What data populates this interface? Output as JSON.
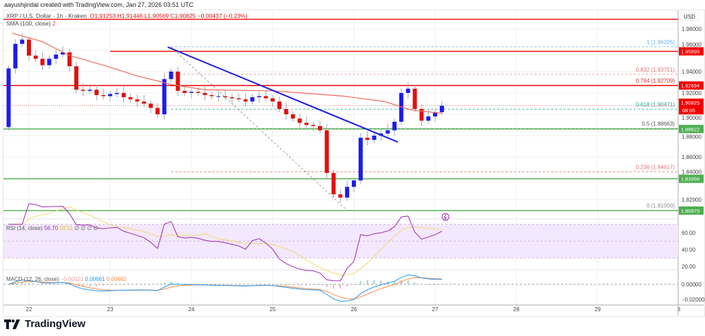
{
  "credit": "aayushjindal created with TradingView.com, Jan 27, 2026 03:51 UTC",
  "legend": {
    "symbol": "XRP / U.S. Dollar · 1h · Kraken",
    "open": "O1.91253",
    "high": "H1.91446",
    "low": "L1.90569",
    "close": "C1.90825",
    "change": "−0.00437 (−0.23%)"
  },
  "sma_legend": {
    "label": "SMA (100, close)",
    "value": "2"
  },
  "currency": "USD",
  "brand": "TradingView",
  "colors": {
    "up": "#1c1cf0",
    "down": "#e01010",
    "sma": "#f06a5a",
    "trendline": "#1a1ae6",
    "resistance": "#f20000",
    "support": "#4caf50",
    "rsi": "#9c27b0",
    "rsi_ma": "#f5d76e",
    "macd": "#2196f3",
    "signal": "#ff8a3d"
  },
  "chart_data": {
    "type": "candlestick",
    "title": "XRP / U.S. Dollar · 1h · Kraken",
    "start": "2026-01-21T18:00",
    "interval_hours": 2,
    "closes": [
      1.943,
      1.966,
      1.97,
      1.955,
      1.952,
      1.946,
      1.952,
      1.956,
      1.958,
      1.945,
      1.923,
      1.922,
      1.923,
      1.918,
      1.917,
      1.919,
      1.92,
      1.916,
      1.914,
      1.912,
      1.91,
      1.906,
      1.9,
      1.933,
      1.94,
      1.922,
      1.92,
      1.921,
      1.92,
      1.918,
      1.917,
      1.917,
      1.916,
      1.915,
      1.914,
      1.912,
      1.916,
      1.917,
      1.915,
      1.912,
      1.905,
      1.9,
      1.896,
      1.892,
      1.89,
      1.889,
      1.885,
      1.845,
      1.825,
      1.822,
      1.832,
      1.838,
      1.878,
      1.876,
      1.88,
      1.882,
      1.885,
      1.893,
      1.92,
      1.924,
      1.905,
      1.894,
      1.898,
      1.902,
      1.908
    ],
    "first_open": 1.888,
    "sma_100": [
      [
        "2026-01-21T19:00",
        1.976
      ],
      [
        "2026-01-22T04:00",
        1.968
      ],
      [
        "2026-01-22T12:00",
        1.955
      ],
      [
        "2026-01-22T22:00",
        1.946
      ],
      [
        "2026-01-23T08:00",
        1.936
      ],
      [
        "2026-01-23T18:00",
        1.928
      ],
      [
        "2026-01-24T04:00",
        1.923
      ],
      [
        "2026-01-25T00:00",
        1.922
      ],
      [
        "2026-01-25T21:00",
        1.917
      ],
      [
        "2026-01-26T09:00",
        1.912
      ],
      [
        "2026-01-26T17:00",
        1.904
      ],
      [
        "2026-01-27T02:00",
        1.901
      ]
    ],
    "trendline": [
      [
        "2026-01-23T17:00",
        1.963
      ],
      [
        "2026-01-26T13:00",
        1.874
      ]
    ],
    "fib_diagonal": [
      [
        "2026-01-23T18:00",
        1.963
      ],
      [
        "2026-01-25T22:00",
        1.81
      ]
    ],
    "fib_start": "2026-01-23T18:00",
    "fib_levels": [
      {
        "label": "1 (1.96326)",
        "price": 1.96326,
        "color": "#64b5f6"
      },
      {
        "label": "0.832 (1.93751)",
        "price": 1.93751,
        "color": "#e57373"
      },
      {
        "label": "0.764 (1.92709)",
        "price": 1.92709,
        "color": "#d32f2f"
      },
      {
        "label": "0.618 (1.90471)",
        "price": 1.90471,
        "color": "#26a69a"
      },
      {
        "label": "0.5 (1.88663)",
        "price": 1.88663,
        "color": "#555555"
      },
      {
        "label": "0.236 (1.84617)",
        "price": 1.84617,
        "color": "#e57373"
      },
      {
        "label": "0 (1.81000)",
        "price": 1.81,
        "color": "#888888"
      }
    ],
    "horizontal_levels": [
      {
        "price": 1.989,
        "label": "",
        "type": "resistance",
        "from": "2026-01-21T16:00"
      },
      {
        "price": 1.95899,
        "label": "1.95899",
        "type": "resistance",
        "from": "2026-01-23T00:00"
      },
      {
        "price": 1.92694,
        "label": "1.92694",
        "type": "resistance",
        "from": "2026-01-21T16:00"
      },
      {
        "price": 1.88622,
        "label": "1.88622",
        "type": "support",
        "from": "2026-01-21T16:00"
      },
      {
        "price": 1.83956,
        "label": "1.83956",
        "type": "support",
        "from": "2026-01-21T16:00"
      },
      {
        "price": 1.80979,
        "label": "1.80979",
        "type": "support",
        "from": "2026-01-21T16:00"
      }
    ],
    "last_price": {
      "label": "1.90825",
      "countdown": "08:05",
      "price": 1.90825
    },
    "y_ticks": [
      "1.98000",
      "1.96000",
      "1.94000",
      "1.92000",
      "1.90000",
      "1.88000",
      "1.86000",
      "1.84000",
      "1.82000"
    ],
    "x_ticks": [
      "22",
      "23",
      "24",
      "25",
      "26",
      "27",
      "28",
      "29",
      "3"
    ],
    "rsi": {
      "label": "RSI (14, close)",
      "value": "56.70",
      "ma_value": "58.11",
      "extra": "∅ ∅ ∅ ∅",
      "ticks": [
        "60.00",
        "40.00",
        "20.00"
      ],
      "band": [
        30,
        70
      ]
    },
    "macd": {
      "label": "MACD (12, 26, close)",
      "hist": "−0.00021",
      "macd": "0.00661",
      "signal": "0.00682",
      "ticks": [
        "0.00000",
        "−0.02000"
      ]
    }
  }
}
